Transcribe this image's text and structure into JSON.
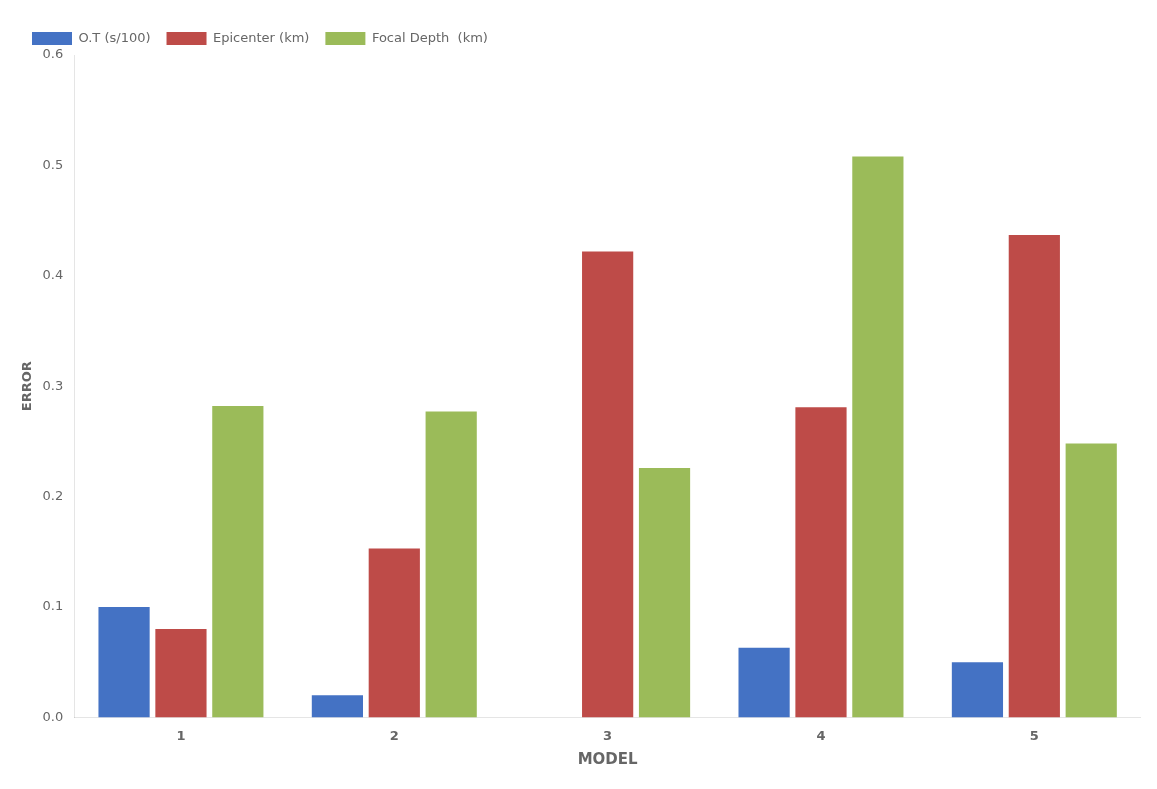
{
  "chart_data": {
    "type": "bar",
    "categories": [
      "1",
      "2",
      "3",
      "4",
      "5"
    ],
    "series": [
      {
        "name": "O.T (s/100)",
        "color": "#4472C4",
        "values": [
          0.1,
          0.02,
          0.0,
          0.063,
          0.05
        ]
      },
      {
        "name": "Epicenter (km)",
        "color": "#BE4B48",
        "values": [
          0.08,
          0.153,
          0.422,
          0.281,
          0.437
        ]
      },
      {
        "name": "Focal Depth  (km)",
        "color": "#9BBB59",
        "values": [
          0.282,
          0.277,
          0.226,
          0.508,
          0.248
        ]
      }
    ],
    "xlabel": "MODEL",
    "ylabel": "ERROR",
    "ylim": [
      0,
      0.6
    ],
    "yticks": [
      {
        "value": 0,
        "label": "0.0"
      },
      0.1,
      0.2,
      0.3,
      0.4,
      0.5,
      0.6
    ],
    "grid": false,
    "legend": "top"
  }
}
